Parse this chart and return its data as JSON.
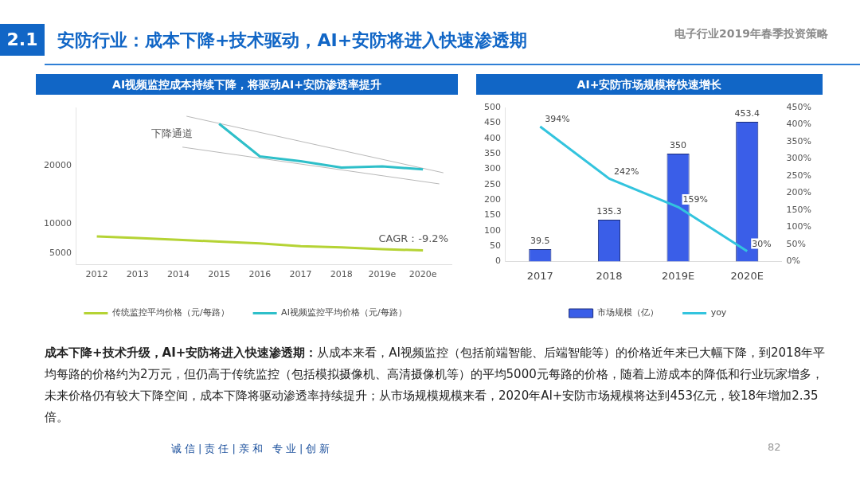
{
  "chart_data": [
    {
      "type": "line",
      "title": "AI视频监控成本持续下降，将驱动AI+安防渗透率提升",
      "x": [
        2012,
        2013,
        2014,
        2015,
        2016,
        2017,
        2018,
        2019,
        2020
      ],
      "xlim": [
        2011.5,
        2020.7
      ],
      "xticks": [
        2012,
        2013,
        2014,
        2015,
        2016,
        2017,
        2018,
        {
          "value": 2019,
          "label": "2019e"
        },
        {
          "value": 2020,
          "label": "2020e"
        }
      ],
      "ylim": [
        3000,
        30000
      ],
      "yticks": [
        5000,
        10000,
        20000
      ],
      "grid": false,
      "legend": "bottom",
      "marker": "none",
      "series": [
        {
          "name": "传统监控平均价格（元/每路）",
          "color": "#b5d334",
          "values": [
            7900,
            7600,
            7300,
            7000,
            6700,
            6200,
            6000,
            5700,
            5500
          ]
        },
        {
          "name": "AI视频监控平均价格（元/每路）",
          "color": "#2ebfc9",
          "values": [
            null,
            null,
            null,
            27200,
            21600,
            20800,
            19700,
            19900,
            19400
          ]
        },
        {
          "type": "line",
          "color": "#b8b8b8",
          "x": [
            2014.2,
            2020.5
          ],
          "values": [
            28500,
            18800
          ]
        },
        {
          "type": "line",
          "color": "#b8b8b8",
          "x": [
            2014.1,
            2020.4
          ],
          "values": [
            23200,
            16900
          ]
        }
      ],
      "annotations": [
        "下降通道",
        "CAGR：-9.2%"
      ]
    },
    {
      "type": "bar",
      "title": "AI+安防市场规模将快速增长",
      "categories": [
        "2017",
        "2018",
        "2019E",
        "2020E"
      ],
      "ylim": [
        0,
        500
      ],
      "yticks": [
        0,
        50,
        100,
        150,
        200,
        250,
        300,
        350,
        400,
        450,
        500
      ],
      "y2lim": [
        0,
        450
      ],
      "y2ticks": [
        {
          "value": 0,
          "label": "0%"
        },
        {
          "value": 50,
          "label": "50%"
        },
        {
          "value": 100,
          "label": "100%"
        },
        {
          "value": 150,
          "label": "150%"
        },
        {
          "value": 200,
          "label": "200%"
        },
        {
          "value": 250,
          "label": "250%"
        },
        {
          "value": 300,
          "label": "300%"
        },
        {
          "value": 350,
          "label": "350%"
        },
        {
          "value": 400,
          "label": "400%"
        },
        {
          "value": 450,
          "label": "450%"
        }
      ],
      "grid": false,
      "legend": "bottom",
      "marker": "none",
      "data_labels": true,
      "series": [
        {
          "name": "市场规模（亿）",
          "color": "#3a5ee8",
          "values": [
            39.5,
            135.3,
            350,
            453.4
          ]
        },
        {
          "name": "yoy",
          "type": "line",
          "axis": "y2",
          "color": "#33c4de",
          "values": [
            394,
            242,
            159,
            30
          ],
          "value_labels": [
            "394%",
            "242%",
            "159%",
            "30%"
          ]
        }
      ]
    },
    {
      "type": "other",
      "title": "安防行业：成本下降+技术驱动，AI+安防将进入快速渗透期",
      "annotations": [
        "2.1",
        "电子行业2019年春季投资策略",
        "成本下降+技术升级，AI+安防将进入快速渗透期：",
        "从成本来看，AI视频监控（包括前端智能、后端智能等）的价格近年来已大幅下降，到2018年平均每路的价格约为2万元，但仍高于传统监控（包括模拟摄像机、高清摄像机等）的平均5000元每路的价格，随着上游成本的降低和行业玩家增多，未来价格仍有较大下降空间，成本下降将驱动渗透率持续提升；从市场规模规模来看，2020年AI+安防市场规模将达到453亿元，较18年增加2.35倍。",
        "诚信|责任|亲和 专业|创新",
        "82"
      ]
    }
  ]
}
